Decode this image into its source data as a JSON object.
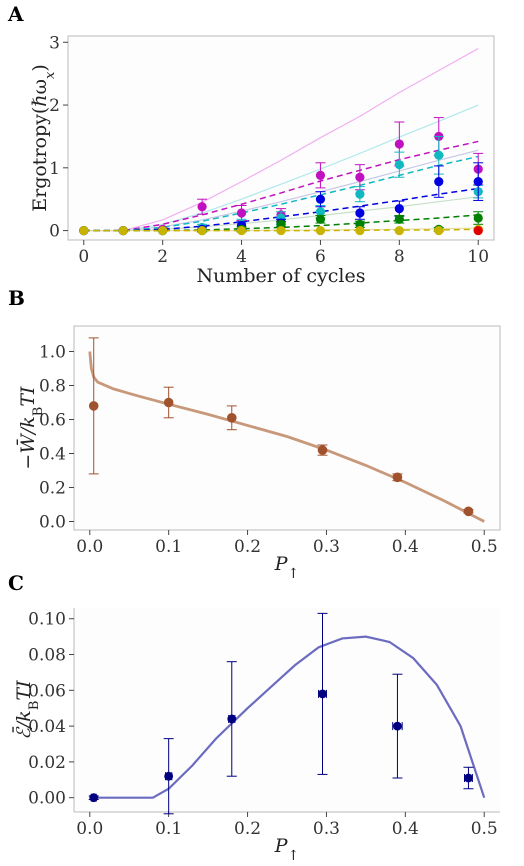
{
  "chart_data": [
    {
      "panel": "A",
      "type": "scatter",
      "xlabel": "Number of cycles",
      "ylabel": "Ergotropy(ℏω",
      "ylabel_sub": "x",
      "ylabel_close": ")",
      "xlim": [
        -0.4,
        10.4
      ],
      "ylim": [
        -0.15,
        3.1
      ],
      "xticks": [
        0,
        2,
        4,
        6,
        8,
        10
      ],
      "yticks": [
        0,
        1,
        2,
        3
      ],
      "x": [
        0,
        1,
        2,
        3,
        4,
        5,
        6,
        7,
        8,
        9,
        10
      ],
      "series": [
        {
          "color": "#c010c0",
          "values": [
            0,
            0,
            0.02,
            0.38,
            0.28,
            0.25,
            0.88,
            0.85,
            1.38,
            1.5,
            0.98
          ],
          "errors": [
            0.01,
            0.01,
            0.02,
            0.12,
            0.12,
            0.1,
            0.2,
            0.2,
            0.35,
            0.3,
            0.25
          ],
          "fit": [
            0,
            0,
            0.1,
            0.25,
            0.42,
            0.6,
            0.79,
            0.96,
            1.13,
            1.28,
            1.42
          ],
          "theory": [
            0,
            0,
            0.17,
            0.45,
            0.78,
            1.12,
            1.48,
            1.82,
            2.2,
            2.55,
            2.9
          ],
          "theory_color": "#f0b0f0"
        },
        {
          "color": "#10b8c0",
          "values": [
            0,
            0,
            0,
            0.05,
            0.1,
            0.2,
            0.3,
            0.58,
            1.05,
            1.2,
            0.62
          ],
          "errors": [
            0.01,
            0.01,
            0.01,
            0.05,
            0.08,
            0.1,
            0.1,
            0.12,
            0.2,
            0.3,
            0.1
          ],
          "fit": [
            0,
            0,
            0.05,
            0.15,
            0.28,
            0.42,
            0.57,
            0.72,
            0.88,
            1.04,
            1.18
          ],
          "theory": [
            0,
            0,
            0.1,
            0.28,
            0.5,
            0.74,
            0.98,
            1.23,
            1.49,
            1.74,
            2.0
          ],
          "theory_color": "#b0e8ec"
        },
        {
          "color": "#0000e0",
          "values": [
            0,
            0,
            0,
            0.02,
            0.08,
            0.12,
            0.5,
            0.28,
            0.35,
            0.78,
            0.78
          ],
          "errors": [
            0.01,
            0.01,
            0.01,
            0.04,
            0.06,
            0.06,
            0.12,
            0.1,
            0.12,
            0.25,
            0.3
          ],
          "fit": [
            0,
            0,
            0.02,
            0.07,
            0.14,
            0.22,
            0.3,
            0.39,
            0.48,
            0.58,
            0.67
          ],
          "theory": [
            0,
            0,
            0.06,
            0.17,
            0.31,
            0.46,
            0.62,
            0.78,
            0.95,
            1.12,
            1.28
          ],
          "theory_color": "#c8c8e8"
        },
        {
          "color": "#008000",
          "values": [
            0,
            0,
            0,
            0,
            0.02,
            0.1,
            0.18,
            0.1,
            0.18,
            0.02,
            0.2
          ],
          "errors": [
            0.01,
            0.01,
            0.01,
            0.02,
            0.04,
            0.04,
            0.06,
            0.05,
            0.06,
            0.03,
            0.1
          ],
          "fit": [
            0,
            0,
            0,
            0.01,
            0.03,
            0.05,
            0.08,
            0.12,
            0.16,
            0.2,
            0.25
          ],
          "theory": [
            0,
            0,
            0.02,
            0.06,
            0.11,
            0.17,
            0.24,
            0.31,
            0.38,
            0.46,
            0.54
          ],
          "theory_color": "#c8e0c8"
        },
        {
          "color": "#c8b400",
          "values": [
            0,
            0,
            0,
            0,
            0,
            0,
            0,
            0,
            0,
            0,
            0.02
          ],
          "errors": [
            0.01,
            0.01,
            0.01,
            0.01,
            0.01,
            0.01,
            0.01,
            0.01,
            0.01,
            0.01,
            0.02
          ],
          "fit": [
            0,
            0,
            0,
            0,
            0,
            0,
            0,
            0.005,
            0.01,
            0.01,
            0.02
          ],
          "theory": [
            0,
            0,
            0,
            0,
            0,
            0.005,
            0.01,
            0.015,
            0.02,
            0.03,
            0.04
          ],
          "theory_color": "#e8dca0"
        },
        {
          "color": "#e00000",
          "values": [
            null,
            null,
            null,
            null,
            null,
            null,
            null,
            null,
            null,
            null,
            0
          ],
          "errors": [
            0,
            0,
            0,
            0,
            0,
            0,
            0,
            0,
            0,
            0,
            0
          ],
          "fit": [],
          "theory": [],
          "theory_color": "#f0b0b0"
        }
      ]
    },
    {
      "panel": "B",
      "type": "scatter",
      "xlabel": "P",
      "xlabel_sub": "↑",
      "ylabel": "−W̄/k",
      "ylabel_sub": "B",
      "ylabel_tail": "TI",
      "xlim": [
        -0.02,
        0.52
      ],
      "ylim": [
        -0.05,
        1.15
      ],
      "xticks": [
        0.0,
        0.1,
        0.2,
        0.3,
        0.4,
        0.5
      ],
      "yticks": [
        0.0,
        0.2,
        0.4,
        0.6,
        0.8,
        1.0
      ],
      "point_color": "#a0522d",
      "curve_color": "#c8987a",
      "points": {
        "x": [
          0.005,
          0.1,
          0.18,
          0.295,
          0.39,
          0.48
        ],
        "y": [
          0.68,
          0.7,
          0.61,
          0.42,
          0.26,
          0.06
        ],
        "err": [
          0.4,
          0.09,
          0.07,
          0.03,
          0.02,
          0.01
        ]
      },
      "curve": {
        "x": [
          0.0,
          0.002,
          0.005,
          0.01,
          0.03,
          0.06,
          0.1,
          0.15,
          0.2,
          0.25,
          0.3,
          0.35,
          0.4,
          0.45,
          0.5
        ],
        "y": [
          1.0,
          0.9,
          0.85,
          0.82,
          0.78,
          0.74,
          0.69,
          0.63,
          0.565,
          0.5,
          0.42,
          0.33,
          0.23,
          0.12,
          0.0
        ]
      }
    },
    {
      "panel": "C",
      "type": "scatter",
      "xlabel": "P",
      "xlabel_sub": "↑",
      "ylabel": "ℰ̄/k",
      "ylabel_sub": "B",
      "ylabel_tail": "TI",
      "xlim": [
        -0.02,
        0.52
      ],
      "ylim": [
        -0.008,
        0.106
      ],
      "xticks": [
        0.0,
        0.1,
        0.2,
        0.3,
        0.4,
        0.5
      ],
      "yticks": [
        0.0,
        0.02,
        0.04,
        0.06,
        0.08,
        0.1
      ],
      "point_color": "#000080",
      "curve_color": "#6b6bc0",
      "points": {
        "x": [
          0.005,
          0.1,
          0.18,
          0.295,
          0.39,
          0.48
        ],
        "y": [
          0.0,
          0.012,
          0.044,
          0.058,
          0.04,
          0.011
        ],
        "err": [
          0.001,
          0.021,
          0.032,
          0.045,
          0.029,
          0.006
        ],
        "xerr": [
          0.003,
          0.004,
          0.004,
          0.005,
          0.006,
          0.005
        ]
      },
      "curve": {
        "x": [
          0.0,
          0.08,
          0.1,
          0.13,
          0.16,
          0.2,
          0.23,
          0.26,
          0.29,
          0.32,
          0.35,
          0.38,
          0.41,
          0.44,
          0.47,
          0.5
        ],
        "y": [
          0.0,
          0.0,
          0.005,
          0.018,
          0.033,
          0.05,
          0.062,
          0.074,
          0.084,
          0.089,
          0.09,
          0.087,
          0.078,
          0.063,
          0.04,
          0.0
        ]
      }
    }
  ],
  "panel_letters": {
    "a": "A",
    "b": "B",
    "c": "C"
  }
}
